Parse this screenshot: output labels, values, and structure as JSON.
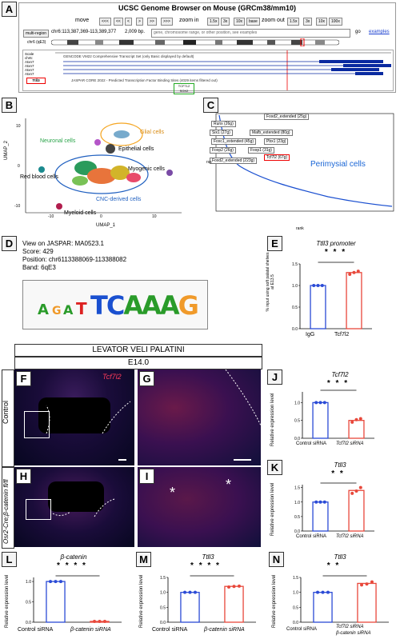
{
  "panel_a": {
    "label": "A",
    "title": "UCSC Genome Browser on Mouse (GRCm38/mm10)",
    "nav": [
      "move",
      "<<<",
      "<<",
      "<",
      ">",
      ">>",
      ">>>",
      "zoom in",
      "1.5x",
      "3x",
      "10x",
      "base",
      "zoom out",
      "1.5x",
      "3x",
      "10x",
      "100x"
    ],
    "multi_region": "multi-region",
    "position": "chr6:113,387,369-113,389,377",
    "bp": "2,009 bp.",
    "search_placeholder": "gene, chromosome range, or other position, see examples",
    "go": "go",
    "examples": "examples",
    "chrom": "chr6 (qE3)",
    "track_names": [
      "Scale",
      "chr6:",
      "Atxn7",
      "Atxn7",
      "Atxn7",
      "Atxn7"
    ],
    "track_label": "GENCODE VM22 Comprehensive Transcript Set (only Basic displayed by default)",
    "jaspar_label": "JASPAR CORE 2022 - Predicted Transcription Factor Binding Sites (4029 items filtered out)",
    "ttll3": "Ttll3",
    "tcf7l2_box": "TCF7L2",
    "sox2_box": "SOX2"
  },
  "panel_b": {
    "label": "B",
    "xlabel": "UMAP_1",
    "ylabel": "UMAP_2",
    "clusters": [
      "Neuronal cells",
      "Glial cells",
      "Epithelial cells",
      "Red blood cells",
      "Myogenic cells",
      "CNC-derived cells",
      "Myeloid cells"
    ],
    "ticks_y": [
      "10",
      "0",
      "-10"
    ],
    "ticks_x": [
      "-10",
      "0",
      "10"
    ]
  },
  "panel_c": {
    "label": "C",
    "labels": [
      "Foxd2_extended (25g)",
      "Runx (26g)",
      "Six1 (27g)",
      "Mafb_extended (80g)",
      "Foxc1_extended (45g)",
      "Pbx1 (23g)",
      "Foxp1 (31g)",
      "Foxp2 (26g)",
      "Tcf7l2 (67g)",
      "Foxd2_extended (223g)"
    ],
    "title": "Perimysial cells",
    "xlabel": "rank",
    "ylabel": "rss"
  },
  "panel_d": {
    "label": "D",
    "lines": [
      "View on JASPAR: MA0523.1",
      "Score: 429",
      "Position: chr6113388069-113388082",
      "Band: 6qE3"
    ],
    "logo": "TCAAAG"
  },
  "panel_e": {
    "label": "E",
    "title": "Ttll3 promoter",
    "ylabel": "% input using soft palatal shelves at E13.5",
    "categories": [
      "IgG",
      "Tcf7l2"
    ],
    "sig": "* * *"
  },
  "header_band": {
    "title": "LEVATOR VELI PALATINI",
    "stage": "E14.0"
  },
  "images": {
    "f_label": "F",
    "g_label": "G",
    "h_label": "H",
    "i_label": "I",
    "stain": "Tcf7l2",
    "row1": "Control",
    "row2": "Osr2-Cre;β-catenin fl/fl"
  },
  "panel_j": {
    "label": "J",
    "title": "Tcf7l2",
    "ylabel": "Relative expression level",
    "categories": [
      "Control siRNA",
      "Tcf7l2 siRNA"
    ],
    "sig": "* * *"
  },
  "panel_k": {
    "label": "K",
    "title": "Ttll3",
    "ylabel": "Relative expression level",
    "categories": [
      "Control siRNA",
      "Tcf7l2 siRNA"
    ],
    "sig": "* *"
  },
  "panel_l": {
    "label": "L",
    "title": "β-catenin",
    "ylabel": "Relative expression level",
    "categories": [
      "Control siRNA",
      "β-catenin siRNA"
    ],
    "sig": "* * * *"
  },
  "panel_m": {
    "label": "M",
    "title": "Ttll3",
    "ylabel": "Relative expression level",
    "categories": [
      "Control siRNA",
      "β-catenin siRNA"
    ],
    "sig": "* * * *"
  },
  "panel_n": {
    "label": "N",
    "title": "Ttll3",
    "ylabel": "Relative expression level",
    "categories": [
      "Control siRNA",
      "Tcf7l2 siRNA",
      "β-catenin siRNA"
    ],
    "sig": "* *"
  },
  "chart_data": [
    {
      "id": "E",
      "type": "bar",
      "title": "Ttll3 promoter",
      "categories": [
        "IgG",
        "Tcf7l2"
      ],
      "values": [
        1.0,
        1.3
      ],
      "points": [
        [
          1.0,
          1.0,
          1.0
        ],
        [
          1.26,
          1.3,
          1.33
        ]
      ],
      "ylim": [
        0,
        1.5
      ],
      "ticks": [
        0,
        0.5,
        1.0,
        1.5
      ],
      "colors": [
        "#2b4bd6",
        "#e8483b"
      ]
    },
    {
      "id": "J",
      "type": "bar",
      "title": "Tcf7l2",
      "categories": [
        "Control siRNA",
        "Tcf7l2 siRNA"
      ],
      "values": [
        1.0,
        0.5
      ],
      "points": [
        [
          1.0,
          1.0,
          1.0
        ],
        [
          0.45,
          0.52,
          0.55
        ]
      ],
      "ylim": [
        0,
        1.3
      ],
      "ticks": [
        0,
        0.5,
        1.0
      ],
      "colors": [
        "#2b4bd6",
        "#e8483b"
      ]
    },
    {
      "id": "K",
      "type": "bar",
      "title": "Ttll3",
      "categories": [
        "Control siRNA",
        "Tcf7l2 siRNA"
      ],
      "values": [
        1.0,
        1.4
      ],
      "points": [
        [
          1.0,
          1.0,
          1.0
        ],
        [
          1.3,
          1.38,
          1.5
        ]
      ],
      "ylim": [
        0,
        1.6
      ],
      "ticks": [
        0,
        0.5,
        1.0,
        1.5
      ],
      "colors": [
        "#2b4bd6",
        "#e8483b"
      ]
    },
    {
      "id": "L",
      "type": "bar",
      "title": "β-catenin",
      "categories": [
        "Control siRNA",
        "β-catenin siRNA"
      ],
      "values": [
        1.0,
        0.02
      ],
      "points": [
        [
          1.0,
          1.0,
          1.0
        ],
        [
          0.02,
          0.02,
          0.02
        ]
      ],
      "ylim": [
        0,
        1.1
      ],
      "ticks": [
        0,
        0.5,
        1.0
      ],
      "colors": [
        "#2b4bd6",
        "#e8483b"
      ]
    },
    {
      "id": "M",
      "type": "bar",
      "title": "Ttll3",
      "categories": [
        "Control siRNA",
        "β-catenin siRNA"
      ],
      "values": [
        1.0,
        1.2
      ],
      "points": [
        [
          1.0,
          1.0,
          1.0
        ],
        [
          1.18,
          1.2,
          1.21
        ]
      ],
      "ylim": [
        0,
        1.5
      ],
      "ticks": [
        0,
        0.5,
        1.0,
        1.5
      ],
      "colors": [
        "#2b4bd6",
        "#e8483b"
      ]
    },
    {
      "id": "N",
      "type": "bar",
      "title": "Ttll3",
      "categories": [
        "Control siRNA",
        "Tcf7l2 siRNA + β-catenin siRNA"
      ],
      "values": [
        1.0,
        1.3
      ],
      "points": [
        [
          1.0,
          1.0,
          1.0
        ],
        [
          1.25,
          1.28,
          1.35
        ]
      ],
      "ylim": [
        0,
        1.5
      ],
      "ticks": [
        0,
        0.5,
        1.0,
        1.5
      ],
      "colors": [
        "#2b4bd6",
        "#e8483b"
      ]
    }
  ]
}
